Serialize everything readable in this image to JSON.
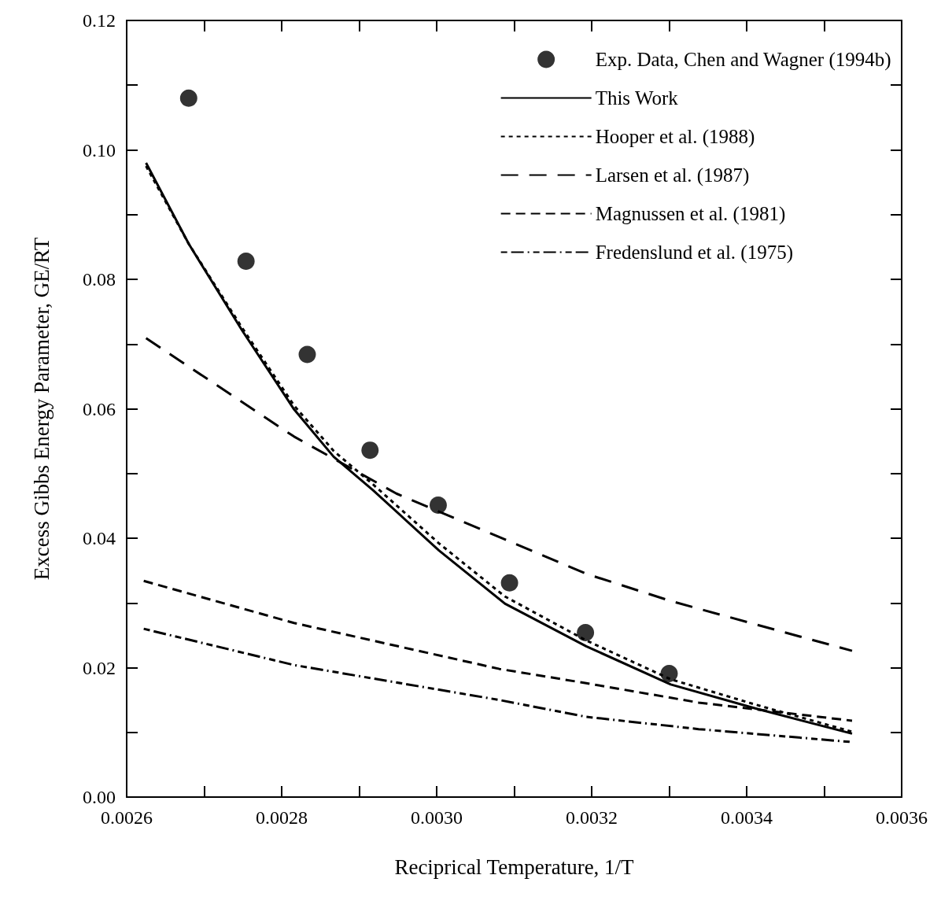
{
  "chart_data": {
    "type": "line",
    "xlabel": "Reciprical Temperature, 1/T",
    "ylabel": "Excess Gibbs Energy Parameter, GE/RT",
    "xlim": [
      0.0026,
      0.0036
    ],
    "ylim": [
      0,
      0.12
    ],
    "xticks": [
      {
        "value": 0.0026,
        "label": "0.0026"
      },
      {
        "value": 0.0027,
        "label": null
      },
      {
        "value": 0.0028,
        "label": "0.0028"
      },
      {
        "value": 0.0029,
        "label": null
      },
      {
        "value": 0.003,
        "label": "0.0030"
      },
      {
        "value": 0.0031,
        "label": null
      },
      {
        "value": 0.0032,
        "label": "0.0032"
      },
      {
        "value": 0.0033,
        "label": null
      },
      {
        "value": 0.0034,
        "label": "0.0034"
      },
      {
        "value": 0.0035,
        "label": null
      },
      {
        "value": 0.0036,
        "label": "0.0036"
      }
    ],
    "yticks": [
      {
        "value": 0,
        "label": "0.00"
      },
      {
        "value": 0.01,
        "label": null
      },
      {
        "value": 0.02,
        "label": "0.02"
      },
      {
        "value": 0.03,
        "label": null
      },
      {
        "value": 0.04,
        "label": "0.04"
      },
      {
        "value": 0.05,
        "label": null
      },
      {
        "value": 0.06,
        "label": "0.06"
      },
      {
        "value": 0.07,
        "label": null
      },
      {
        "value": 0.08,
        "label": "0.08"
      },
      {
        "value": 0.09,
        "label": null
      },
      {
        "value": 0.1,
        "label": "0.10"
      },
      {
        "value": 0.11,
        "label": null
      },
      {
        "value": 0.12,
        "label": "0.12"
      }
    ],
    "grid": false,
    "legend": "top right",
    "series": [
      {
        "name": "Exp. Data, Chen and Wagner (1994b)",
        "type": "scatter",
        "marker": "circle",
        "color": "#000000",
        "x": [
          0.00268,
          0.002754,
          0.002833,
          0.002914,
          0.003002,
          0.003094,
          0.003192,
          0.0033
        ],
        "values": [
          0.108,
          0.0828,
          0.0684,
          0.0536,
          0.0451,
          0.0331,
          0.0254,
          0.0191
        ]
      },
      {
        "name": "This Work",
        "line_style": "solid",
        "color": "#000000",
        "x": [
          0.002625,
          0.00268,
          0.002749,
          0.002816,
          0.002867,
          0.002918,
          0.003003,
          0.003088,
          0.003193,
          0.003302,
          0.003411,
          0.003536
        ],
        "values": [
          0.098,
          0.0855,
          0.0721,
          0.0599,
          0.0526,
          0.0474,
          0.0381,
          0.0299,
          0.0233,
          0.0174,
          0.0137,
          0.0098
        ]
      },
      {
        "name": "Hooper et al. (1988)",
        "line_style": "dotted",
        "color": "#000000",
        "x": [
          0.002625,
          0.00268,
          0.002749,
          0.002816,
          0.002867,
          0.002918,
          0.003003,
          0.003088,
          0.003193,
          0.003302,
          0.003411,
          0.003536
        ],
        "values": [
          0.0975,
          0.0855,
          0.0725,
          0.0605,
          0.0535,
          0.0483,
          0.0392,
          0.031,
          0.0242,
          0.0182,
          0.0143,
          0.0101
        ]
      },
      {
        "name": "Larsen et al. (1987)",
        "line_style": "dashed",
        "color": "#000000",
        "x": [
          0.002625,
          0.002816,
          0.002948,
          0.003193,
          0.003302,
          0.003411,
          0.003536
        ],
        "values": [
          0.0709,
          0.0557,
          0.0469,
          0.0345,
          0.0303,
          0.0267,
          0.0226
        ]
      },
      {
        "name": "Magnussen et al. (1981)",
        "line_style": "dashed",
        "color": "#000000",
        "x": [
          0.002622,
          0.002816,
          0.003081,
          0.003193,
          0.003338,
          0.003536
        ],
        "values": [
          0.0334,
          0.0269,
          0.0198,
          0.0176,
          0.0146,
          0.0118
        ]
      },
      {
        "name": "Fredenslund et al. (1975)",
        "line_style": "dashed",
        "color": "#000000",
        "x": [
          0.002622,
          0.002816,
          0.003081,
          0.003193,
          0.003338,
          0.003536
        ],
        "values": [
          0.026,
          0.0204,
          0.015,
          0.0124,
          0.0105,
          0.0085
        ]
      }
    ]
  }
}
